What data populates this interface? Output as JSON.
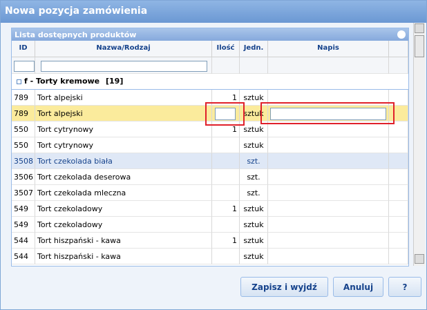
{
  "window": {
    "title": "Nowa pozycja zamówienia"
  },
  "panel": {
    "title": "Lista dostępnych produktów",
    "columns": [
      "ID",
      "Nazwa/Rodzaj",
      "Ilość",
      "Jedn.",
      "Napis"
    ],
    "group": {
      "name": "f - Torty kremowe",
      "count": "[19]"
    },
    "rows": [
      {
        "id": "789",
        "name": "Tort alpejski",
        "qty": 1,
        "unit": "sztuk"
      },
      {
        "id": "789",
        "name": "Tort alpejski",
        "unit": "sztuk",
        "editing": true
      },
      {
        "id": "550",
        "name": "Tort cytrynowy",
        "qty": 1,
        "unit": "sztuk"
      },
      {
        "id": "550",
        "name": "Tort cytrynowy",
        "unit": "sztuk"
      },
      {
        "id": "3508",
        "name": "Tort czekolada biała",
        "unit": "szt.",
        "selected": true
      },
      {
        "id": "3506",
        "name": "Tort czekolada deserowa",
        "unit": "szt."
      },
      {
        "id": "3507",
        "name": "Tort czekolada mleczna",
        "unit": "szt."
      },
      {
        "id": "549",
        "name": "Tort czekoladowy",
        "qty": 1,
        "unit": "sztuk"
      },
      {
        "id": "549",
        "name": "Tort czekoladowy",
        "unit": "sztuk"
      },
      {
        "id": "544",
        "name": "Tort hiszpański - kawa",
        "qty": 1,
        "unit": "sztuk"
      },
      {
        "id": "544",
        "name": "Tort hiszpański - kawa",
        "unit": "sztuk"
      }
    ]
  },
  "buttons": [
    "Zapisz i wyjdź",
    "Anuluj",
    "?"
  ]
}
